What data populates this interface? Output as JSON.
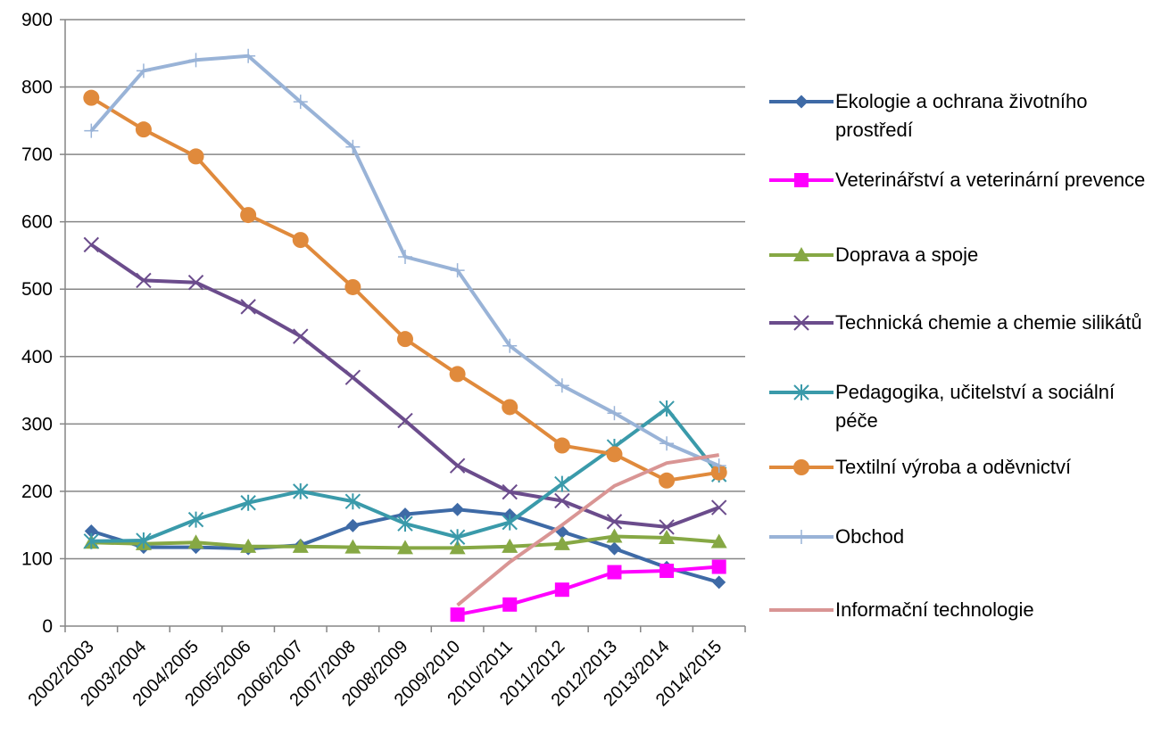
{
  "chart_data": {
    "type": "line",
    "categories": [
      "2002/2003",
      "2003/2004",
      "2004/2005",
      "2005/2006",
      "2006/2007",
      "2007/2008",
      "2008/2009",
      "2009/2010",
      "2010/2011",
      "2011/2012",
      "2012/2013",
      "2013/2014",
      "2014/2015"
    ],
    "ylim": [
      0,
      900
    ],
    "yticks": [
      0,
      100,
      200,
      300,
      400,
      500,
      600,
      700,
      800,
      900
    ],
    "grid": true,
    "legend_position": "right",
    "series": [
      {
        "name": "Ekologie a ochrana životního prostředí",
        "color": "#3e6aa6",
        "marker": "diamond",
        "values": [
          141,
          117,
          117,
          115,
          120,
          149,
          166,
          173,
          165,
          140,
          115,
          87,
          65
        ]
      },
      {
        "name": "Veterinářství a veterinární prevence",
        "color": "#ff00ff",
        "marker": "square",
        "values": [
          null,
          null,
          null,
          null,
          null,
          null,
          null,
          17,
          32,
          54,
          80,
          82,
          88
        ]
      },
      {
        "name": "Doprava a spoje",
        "color": "#86a844",
        "marker": "triangle",
        "values": [
          124,
          122,
          124,
          118,
          118,
          117,
          116,
          116,
          118,
          122,
          133,
          131,
          125
        ]
      },
      {
        "name": "Technická chemie a chemie silikátů",
        "color": "#6b4c8c",
        "marker": "x",
        "values": [
          566,
          513,
          510,
          474,
          430,
          369,
          305,
          238,
          199,
          186,
          155,
          147,
          176
        ]
      },
      {
        "name": "Pedagogika, učitelství a sociální péče",
        "color": "#3a9aaa",
        "marker": "asterisk",
        "values": [
          126,
          127,
          158,
          183,
          200,
          185,
          152,
          132,
          154,
          211,
          266,
          323,
          225
        ]
      },
      {
        "name": "Textilní výroba a oděvnictví",
        "color": "#e08a3c",
        "marker": "circle",
        "values": [
          784,
          737,
          697,
          610,
          573,
          503,
          426,
          374,
          325,
          268,
          255,
          216,
          228
        ]
      },
      {
        "name": "Obchod",
        "color": "#99b3d7",
        "marker": "plus",
        "values": [
          735,
          824,
          840,
          846,
          778,
          711,
          548,
          528,
          416,
          357,
          316,
          271,
          238
        ]
      },
      {
        "name": "Informační technologie",
        "color": "#d99594",
        "marker": "none",
        "values": [
          null,
          null,
          null,
          null,
          null,
          null,
          null,
          31,
          95,
          150,
          208,
          242,
          254
        ]
      }
    ]
  }
}
